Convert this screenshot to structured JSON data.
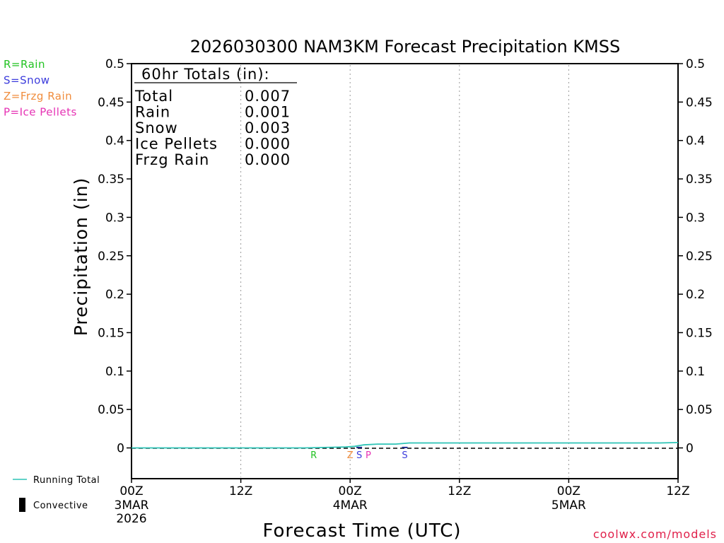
{
  "chart_data": {
    "type": "line",
    "title": "2026030300 NAM3KM Forecast Precipitation KMSS",
    "xlabel": "Forecast Time (UTC)",
    "ylabel": "Precipitation (in)",
    "xlim": [
      0,
      60
    ],
    "ylim": [
      -0.04,
      0.5
    ],
    "y_ticks": [
      0,
      0.05,
      0.1,
      0.15,
      0.2,
      0.25,
      0.3,
      0.35,
      0.4,
      0.45,
      0.5
    ],
    "y_tick_labels": [
      "0",
      "0.05",
      "0.1",
      "0.15",
      "0.2",
      "0.25",
      "0.3",
      "0.35",
      "0.4",
      "0.45",
      "0.5"
    ],
    "x_ticks": [
      {
        "hour": 0,
        "label": "00Z",
        "date": "3MAR",
        "year": "2026"
      },
      {
        "hour": 12,
        "label": "12Z",
        "date": "",
        "year": ""
      },
      {
        "hour": 24,
        "label": "00Z",
        "date": "4MAR",
        "year": ""
      },
      {
        "hour": 36,
        "label": "12Z",
        "date": "",
        "year": ""
      },
      {
        "hour": 48,
        "label": "00Z",
        "date": "5MAR",
        "year": ""
      },
      {
        "hour": 60,
        "label": "12Z",
        "date": "",
        "year": ""
      }
    ],
    "grid_x_hours": [
      12,
      24,
      36,
      48
    ],
    "series": [
      {
        "name": "Running Total",
        "color": "#2ec4b6",
        "x": [
          0,
          19,
          22,
          23.5,
          24.5,
          25.5,
          27,
          29,
          30.5,
          35,
          48,
          58,
          60
        ],
        "values": [
          0,
          0,
          0.0008,
          0.0012,
          0.002,
          0.004,
          0.005,
          0.005,
          0.0065,
          0.0065,
          0.0065,
          0.0065,
          0.007
        ]
      }
    ],
    "precip_type_markers": [
      {
        "hour": 20,
        "letter": "R",
        "color": "#22c322"
      },
      {
        "hour": 24,
        "letter": "Z",
        "color": "#f08c3c"
      },
      {
        "hour": 25,
        "letter": "S",
        "color": "#3c3cdc"
      },
      {
        "hour": 26,
        "letter": "P",
        "color": "#e632b4"
      },
      {
        "hour": 30,
        "letter": "S",
        "color": "#3c3cdc"
      }
    ],
    "convective_bars": [
      {
        "hour": 25,
        "value": 0.0015
      },
      {
        "hour": 30,
        "value": 0.0015
      }
    ],
    "totals_box": {
      "header": "60hr Totals (in):",
      "rows": [
        {
          "label": "Total",
          "value": "0.007"
        },
        {
          "label": "Rain",
          "value": "0.001"
        },
        {
          "label": "Snow",
          "value": "0.003"
        },
        {
          "label": "Ice Pellets",
          "value": "0.000"
        },
        {
          "label": "Frzg Rain",
          "value": "0.000"
        }
      ]
    },
    "type_legend": [
      {
        "text": "R=Rain",
        "color": "#22c322"
      },
      {
        "text": "S=Snow",
        "color": "#3c3cdc"
      },
      {
        "text": "Z=Frzg Rain",
        "color": "#f08c3c"
      },
      {
        "text": "P=Ice Pellets",
        "color": "#e632b4"
      }
    ],
    "bottom_legend": [
      {
        "text": "Running Total",
        "color": "#2ec4b6",
        "kind": "line"
      },
      {
        "text": "Convective",
        "color": "#000000",
        "kind": "bar"
      }
    ],
    "credit": "coolwx.com/models"
  }
}
